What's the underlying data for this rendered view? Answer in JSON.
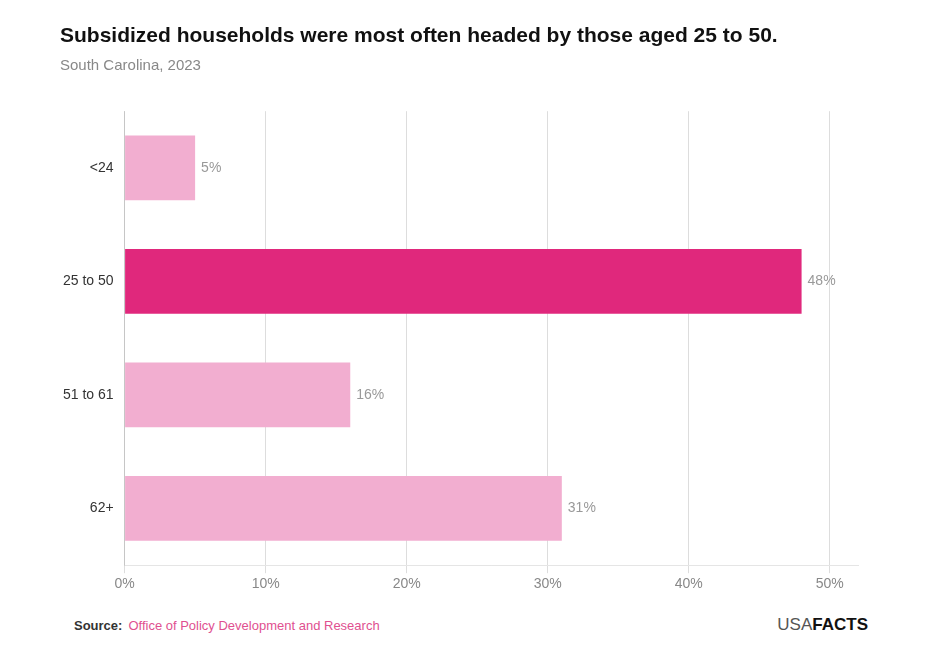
{
  "chart_data": {
    "type": "bar",
    "orientation": "horizontal",
    "title": "Subsidized households were most often headed by those aged 25 to 50.",
    "subtitle": "South Carolina, 2023",
    "categories": [
      "62+",
      "51 to 61",
      "25 to 50",
      "<24"
    ],
    "values": [
      31,
      16,
      48,
      5
    ],
    "value_labels": [
      "31%",
      "16%",
      "48%",
      "5%"
    ],
    "data_labels": true,
    "colors": [
      "#f2aed0",
      "#f2aed0",
      "#e0287c",
      "#f2aed0"
    ],
    "xlim": [
      0,
      52
    ],
    "xticks": [
      {
        "value": 0,
        "label": "0%"
      },
      {
        "value": 10,
        "label": "10%"
      },
      {
        "value": 20,
        "label": "20%"
      },
      {
        "value": 30,
        "label": "30%"
      },
      {
        "value": 40,
        "label": "40%"
      },
      {
        "value": 50,
        "label": "50%"
      }
    ],
    "grid": true,
    "annotations": [
      "Source:",
      "Office of Policy Development and Research",
      "USA",
      "FACTS"
    ]
  }
}
